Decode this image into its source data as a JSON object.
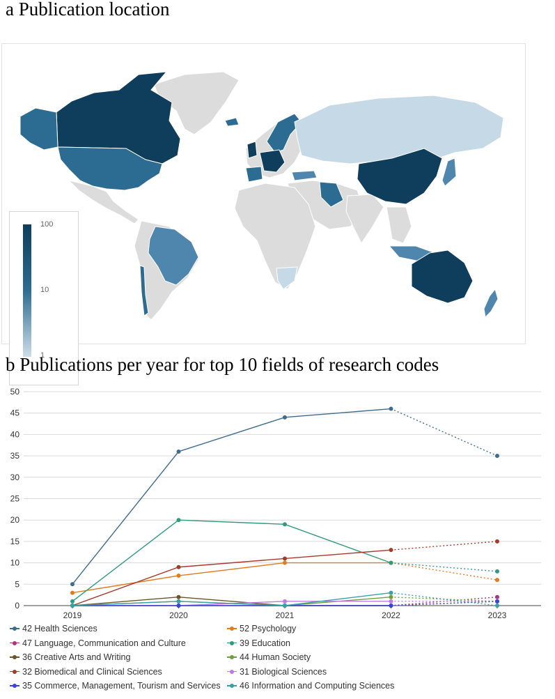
{
  "panel_a": {
    "title": "a  Publication location",
    "legend": {
      "max_label": "100",
      "mid_label": "10",
      "min_label": "1"
    },
    "colors": {
      "high": "#0f3d5c",
      "mid": "#2d6c92",
      "low_mid": "#4f86ad",
      "low": "#c6d9e6",
      "none": "#dcdcdc"
    }
  },
  "panel_b": {
    "title": "b  Publications per year for top 10 fields of research codes"
  },
  "chart_data": {
    "type": "line",
    "title": "b  Publications per year for top 10 fields of research codes",
    "xlabel": "",
    "ylabel": "",
    "x": [
      "2019",
      "2020",
      "2021",
      "2022",
      "2023"
    ],
    "ylim": [
      0,
      50
    ],
    "yticks": [
      0,
      5,
      10,
      15,
      20,
      25,
      30,
      35,
      40,
      45,
      50
    ],
    "grid": "horizontal",
    "legend_position": "bottom",
    "dotted_last_segment": true,
    "series": [
      {
        "name": "42 Health Sciences",
        "color": "#3e6c8f",
        "values": [
          5,
          36,
          44,
          46,
          35
        ]
      },
      {
        "name": "52 Psychology",
        "color": "#e07b20",
        "values": [
          3,
          7,
          10,
          10,
          6
        ]
      },
      {
        "name": "47 Language, Communication and Culture",
        "color": "#a4387e",
        "values": [
          0,
          0,
          0,
          0,
          2
        ]
      },
      {
        "name": "39 Education",
        "color": "#2f9a7d",
        "values": [
          1,
          20,
          19,
          10,
          8
        ]
      },
      {
        "name": "36 Creative Arts and Writing",
        "color": "#6b5527",
        "values": [
          0,
          2,
          0,
          0,
          1
        ]
      },
      {
        "name": "44 Human Society",
        "color": "#6f9e3a",
        "values": [
          0,
          1,
          0,
          2,
          1
        ]
      },
      {
        "name": "32 Biomedical and Clinical Sciences",
        "color": "#a83a2c",
        "values": [
          0,
          9,
          11,
          13,
          15
        ]
      },
      {
        "name": "31 Biological Sciences",
        "color": "#c07ae0",
        "values": [
          0,
          0,
          1,
          1,
          1
        ]
      },
      {
        "name": "35 Commerce, Management, Tourism and Services",
        "color": "#3546d8",
        "values": [
          0,
          0,
          0,
          0,
          1
        ]
      },
      {
        "name": "46 Information and Computing Sciences",
        "color": "#3aa0a6",
        "values": [
          0,
          1,
          0,
          3,
          0
        ]
      }
    ]
  }
}
